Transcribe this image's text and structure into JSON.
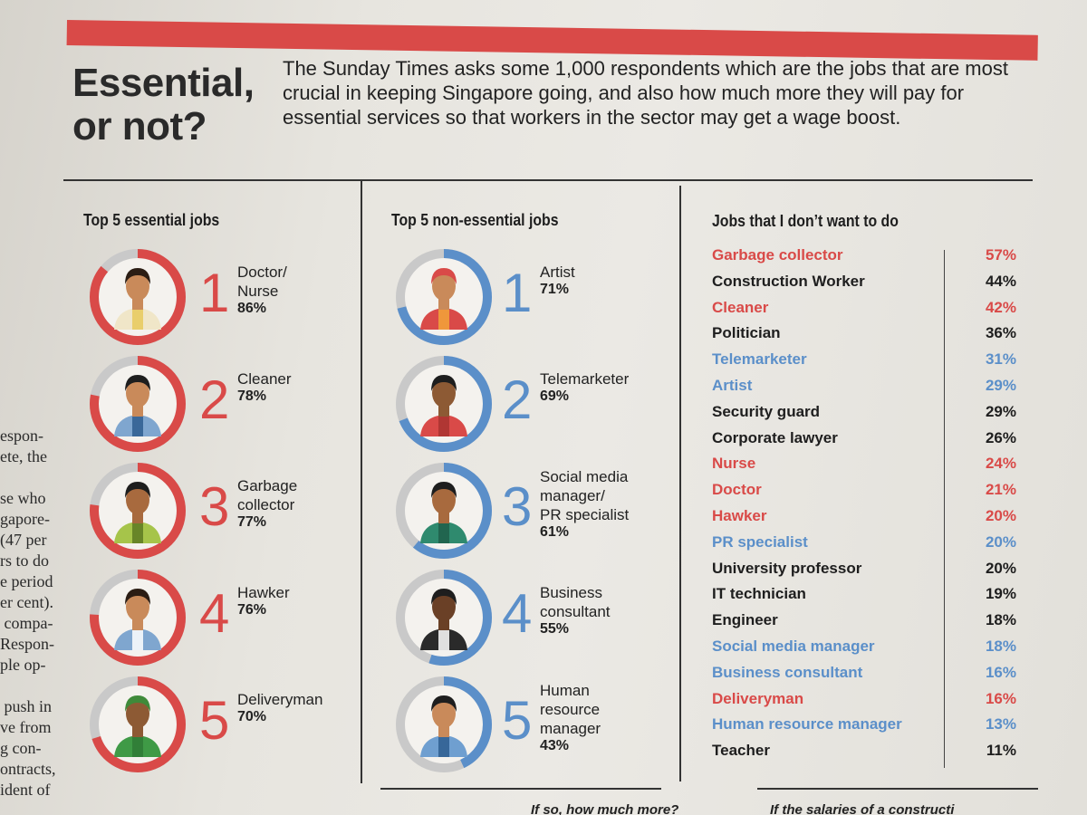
{
  "headline": "Essential,\nor not?",
  "intro": "The Sunday Times asks some 1,000 respondents which are the jobs that are most crucial in keeping Singapore going, and also how much more they will pay for essential services so that workers in the sector may get a wage boost.",
  "side_text": "espon-\nete, the\n\nse who\ngapore-\n(47 per\nrs to do\ne period\ner cent).\n compa-\nRespon-\nple op-\n\n push in\nve from\ng con-\nontracts,\nident of",
  "bottom_left": "If so, how much more?",
  "bottom_right": "If the salaries of a constructi",
  "colors": {
    "red": "#d94a48",
    "blue": "#5b8fc9",
    "grey": "#c9c9c9",
    "black": "#1e1e1e"
  },
  "chart_data": [
    {
      "type": "pie",
      "title": "Top 5 essential jobs",
      "categories": [
        "Doctor/\nNurse",
        "Cleaner",
        "Garbage\ncollector",
        "Hawker",
        "Deliveryman"
      ],
      "ranks": [
        "1",
        "2",
        "3",
        "4",
        "5"
      ],
      "values": [
        86,
        78,
        77,
        76,
        70
      ],
      "labels": [
        "86%",
        "78%",
        "77%",
        "76%",
        "70%"
      ],
      "icons": [
        "doctor-icon",
        "cleaner-icon",
        "garbage-collector-icon",
        "hawker-icon",
        "deliveryman-icon"
      ]
    },
    {
      "type": "pie",
      "title": "Top 5 non-essential jobs",
      "categories": [
        "Artist",
        "Telemarketer",
        "Social media\nmanager/\nPR specialist",
        "Business\nconsultant",
        "Human\nresource\nmanager"
      ],
      "ranks": [
        "1",
        "2",
        "3",
        "4",
        "5"
      ],
      "values": [
        71,
        69,
        61,
        55,
        43
      ],
      "labels": [
        "71%",
        "69%",
        "61%",
        "55%",
        "43%"
      ],
      "icons": [
        "artist-icon",
        "telemarketer-icon",
        "social-media-manager-icon",
        "business-consultant-icon",
        "hr-manager-icon"
      ]
    },
    {
      "type": "table",
      "title": "Jobs that I don’t want to do",
      "rows": [
        {
          "job": "Garbage collector",
          "pct": "57%",
          "group": "essential"
        },
        {
          "job": "Construction Worker",
          "pct": "44%",
          "group": "other"
        },
        {
          "job": "Cleaner",
          "pct": "42%",
          "group": "essential"
        },
        {
          "job": "Politician",
          "pct": "36%",
          "group": "other"
        },
        {
          "job": "Telemarketer",
          "pct": "31%",
          "group": "non-essential"
        },
        {
          "job": "Artist",
          "pct": "29%",
          "group": "non-essential"
        },
        {
          "job": "Security guard",
          "pct": "29%",
          "group": "other"
        },
        {
          "job": "Corporate lawyer",
          "pct": "26%",
          "group": "other"
        },
        {
          "job": "Nurse",
          "pct": "24%",
          "group": "essential"
        },
        {
          "job": "Doctor",
          "pct": "21%",
          "group": "essential"
        },
        {
          "job": "Hawker",
          "pct": "20%",
          "group": "essential"
        },
        {
          "job": "PR specialist",
          "pct": "20%",
          "group": "non-essential"
        },
        {
          "job": "University professor",
          "pct": "20%",
          "group": "other"
        },
        {
          "job": "IT technician",
          "pct": "19%",
          "group": "other"
        },
        {
          "job": "Engineer",
          "pct": "18%",
          "group": "other"
        },
        {
          "job": "Social media manager",
          "pct": "18%",
          "group": "non-essential"
        },
        {
          "job": "Business consultant",
          "pct": "16%",
          "group": "non-essential"
        },
        {
          "job": "Deliveryman",
          "pct": "16%",
          "group": "essential"
        },
        {
          "job": "Human resource manager",
          "pct": "13%",
          "group": "non-essential"
        },
        {
          "job": "Teacher",
          "pct": "11%",
          "group": "other"
        }
      ]
    }
  ]
}
